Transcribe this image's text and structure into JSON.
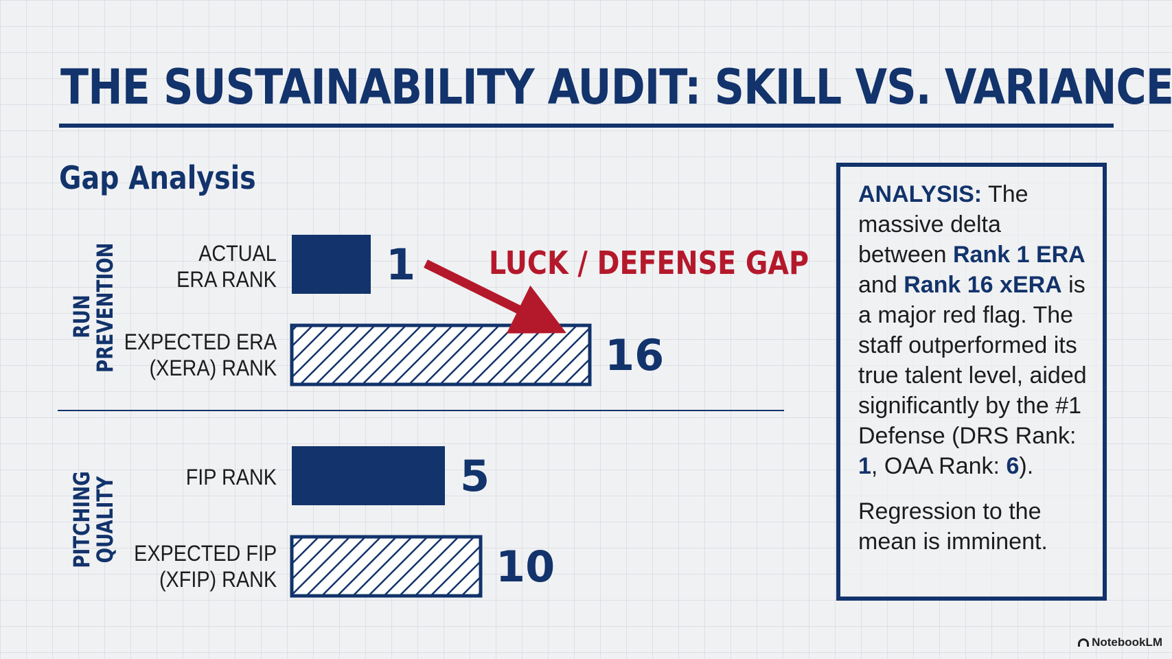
{
  "title": "THE SUSTAINABILITY AUDIT: SKILL VS. VARIANCE",
  "subtitle": "Gap Analysis",
  "groups": [
    {
      "label": "RUN\nPREVENTION"
    },
    {
      "label": "PITCHING\nQUALITY"
    }
  ],
  "annotation": {
    "text": "LUCK / DEFENSE GAP",
    "color": "#b4192b"
  },
  "chart_data": {
    "type": "bar",
    "orientation": "horizontal",
    "title": "Gap Analysis",
    "categories": [
      "ACTUAL ERA RANK",
      "EXPECTED ERA (XERA) RANK",
      "FIP RANK",
      "EXPECTED FIP (XFIP) RANK"
    ],
    "category_display": [
      "ACTUAL\nERA RANK",
      "EXPECTED ERA\n(XERA) RANK",
      "FIP RANK",
      "EXPECTED FIP\n(XFIP) RANK"
    ],
    "values": [
      1,
      16,
      5,
      10
    ],
    "styles": [
      "solid",
      "hatched",
      "solid",
      "hatched"
    ],
    "groups": [
      "RUN PREVENTION",
      "RUN PREVENTION",
      "PITCHING QUALITY",
      "PITCHING QUALITY"
    ],
    "colors": {
      "bar": "#12336b",
      "hatch_bg": "#ffffff"
    },
    "grid": true
  },
  "analysis": {
    "lead": "ANALYSIS:",
    "t1": " The massive delta between ",
    "h1": "Rank 1 ERA",
    "t2": " and ",
    "h2": "Rank 16 xERA",
    "t3": " is a major red flag. The staff outperformed its true talent level, aided significantly by the #1 Defense (DRS Rank: ",
    "h3": "1",
    "t4": ", OAA Rank: ",
    "h4": "6",
    "t5": ").",
    "conclusion": "Regression to the mean is imminent."
  },
  "watermark": "NotebookLM"
}
